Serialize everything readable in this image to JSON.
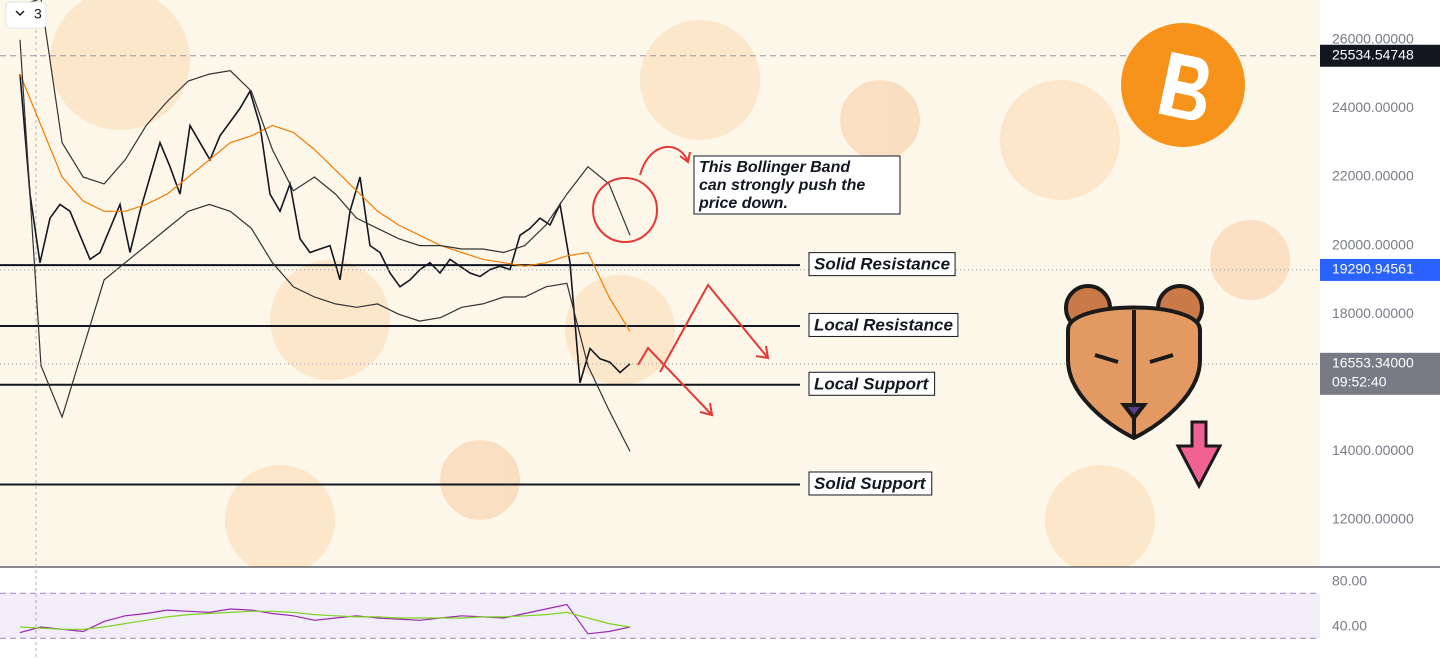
{
  "toolbar": {
    "badge": "3"
  },
  "chart_data": [
    {
      "type": "line",
      "series": [
        {
          "color": "#131722",
          "values": [
            25000,
            21500,
            19500,
            20800,
            21200,
            21000,
            20300,
            19600,
            19800,
            20500,
            21200,
            19800,
            21000,
            22000,
            23000,
            22300,
            21500,
            23500,
            23000,
            22500,
            23200,
            23600,
            24000,
            24500,
            23500,
            21500,
            21000,
            21800,
            20200,
            19800,
            19900,
            20000,
            19000,
            21000,
            22000,
            20000,
            19800,
            19200,
            18800,
            19000,
            19300,
            19500,
            19200,
            19600,
            19400,
            19200,
            19100,
            19300,
            19400,
            19300,
            20300,
            20500,
            20800,
            20600,
            21200,
            19500,
            16000,
            17000,
            16700,
            16600,
            16300,
            16553
          ]
        },
        {
          "color": "#f57c00",
          "values": [
            25000,
            23500,
            22000,
            21300,
            21000,
            21000,
            21200,
            21500,
            22000,
            22500,
            23000,
            23200,
            23500,
            23300,
            22800,
            22200,
            21600,
            21000,
            20600,
            20300,
            20000,
            19800,
            19600,
            19500,
            19400,
            19500,
            19700,
            19800,
            18500,
            17500
          ]
        },
        {
          "color": "#333333",
          "values": [
            27000,
            27200,
            23000,
            22000,
            21800,
            22500,
            23500,
            24200,
            24800,
            25000,
            25100,
            24500,
            22800,
            21600,
            22000,
            21500,
            20800,
            20500,
            20200,
            20000,
            20000,
            19900,
            19900,
            19800,
            20000,
            20600,
            21500,
            22300,
            21800,
            20300
          ]
        },
        {
          "color": "#333333",
          "values": [
            26000,
            16500,
            15000,
            17000,
            19000,
            19500,
            20000,
            20500,
            21000,
            21200,
            21000,
            20500,
            19500,
            18800,
            18500,
            18300,
            18200,
            18300,
            18000,
            17800,
            17900,
            18200,
            18300,
            18500,
            18500,
            18800,
            18900,
            16500,
            15200,
            14000
          ]
        }
      ],
      "ylim": [
        10630,
        27160
      ],
      "yticks": [
        {
          "value": 12000,
          "label": "12000.00000"
        },
        {
          "value": 14000,
          "label": "14000.00000"
        },
        {
          "value": 18000,
          "label": "18000.00000"
        },
        {
          "value": 20000,
          "label": "20000.00000"
        },
        {
          "value": 22000,
          "label": "22000.00000"
        },
        {
          "value": 24000,
          "label": "24000.00000"
        },
        {
          "value": 26000,
          "label": "26000.00000"
        }
      ],
      "levels": [
        {
          "label": "Solid Resistance",
          "value": 19430
        },
        {
          "label": "Local Resistance",
          "value": 17657
        },
        {
          "label": "Local Support",
          "value": 15942
        },
        {
          "label": "Solid Support",
          "value": 13035
        }
      ],
      "price_labels": [
        {
          "value": 25534.54748,
          "color": "#131722"
        },
        {
          "value": 19290.94561,
          "color": "#2962ff"
        },
        {
          "value": 16553.34,
          "label": "16553.34000",
          "color": "#787b86"
        }
      ],
      "countdown": "09:52:40",
      "annotation": [
        "This Bollinger Band",
        "can strongly push the",
        "price down."
      ]
    },
    {
      "type": "line",
      "series": [
        {
          "color": "#9c27b0",
          "values": [
            35,
            40,
            38,
            36,
            45,
            50,
            52,
            55,
            54,
            53,
            56,
            55,
            52,
            50,
            46,
            48,
            50,
            48,
            47,
            46,
            48,
            50,
            49,
            48,
            52,
            56,
            60,
            34,
            36,
            40
          ]
        },
        {
          "color": "#7cd321",
          "values": [
            40,
            39,
            38,
            38,
            40,
            43,
            46,
            49,
            51,
            52,
            53,
            54,
            54,
            53,
            51,
            50,
            49,
            49,
            48,
            48,
            48,
            48,
            49,
            49,
            50,
            51,
            53,
            48,
            43,
            40
          ]
        }
      ],
      "ylim": [
        11.6,
        93.3
      ],
      "yticks": [
        {
          "value": 40,
          "label": "40.00"
        },
        {
          "value": 80,
          "label": "80.00"
        }
      ],
      "bands": [
        70,
        30
      ]
    }
  ]
}
